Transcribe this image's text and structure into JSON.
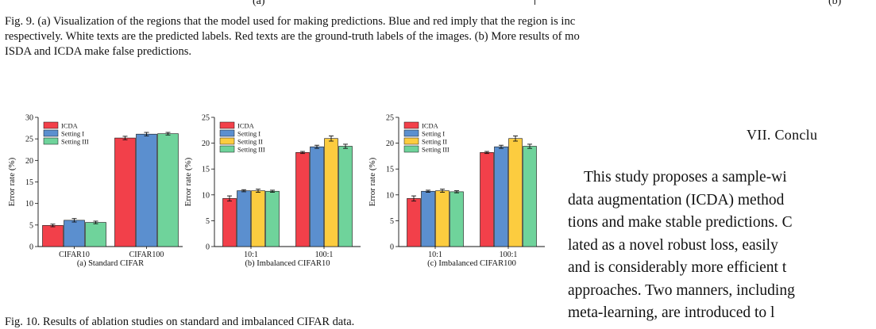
{
  "fig9": {
    "sub_a": "(a)",
    "sub_b": "(b)",
    "caption_lines": [
      "Fig. 9.  (a) Visualization of the regions that the model used for making predictions. Blue and red imply that the region is inc",
      "respectively. White texts are the predicted labels. Red texts are the ground-truth labels of the images. (b) More results of mo",
      "ISDA and ICDA make false predictions."
    ]
  },
  "fig10": {
    "caption": "Fig. 10.  Results of ablation studies on standard and imbalanced CIFAR data."
  },
  "section_heading": "VII. Conclu",
  "body_lines": [
    "This study proposes a sample-wi",
    "data augmentation (ICDA) method",
    "tions and make stable predictions. C",
    "lated as a novel robust loss, easily",
    "and is considerably more efficient t",
    "approaches. Two manners, including",
    "meta-learning, are introduced to l"
  ],
  "colors": {
    "ICDA": "#f2404a",
    "Setting I": "#5b8fcf",
    "Setting II": "#fccc3f",
    "Setting III": "#6fd39b"
  },
  "chart_data": [
    {
      "type": "bar",
      "subtitle": "(a) Standard CIFAR",
      "ylabel": "Error rate (%)",
      "ylim": [
        0,
        30
      ],
      "yticks": [
        0,
        5,
        10,
        15,
        20,
        25,
        30
      ],
      "categories": [
        "CIFAR10",
        "CIFAR100"
      ],
      "legend": "top-left",
      "series": [
        {
          "name": "ICDA",
          "values": [
            4.9,
            25.2
          ],
          "errors": [
            0.3,
            0.4
          ]
        },
        {
          "name": "Setting I",
          "values": [
            6.1,
            26.1
          ],
          "errors": [
            0.4,
            0.4
          ]
        },
        {
          "name": "Setting III",
          "values": [
            5.6,
            26.2
          ],
          "errors": [
            0.3,
            0.3
          ]
        }
      ]
    },
    {
      "type": "bar",
      "subtitle": "(b) Imbalanced CIFAR10",
      "ylabel": "Error rate (%)",
      "ylim": [
        0,
        25
      ],
      "yticks": [
        0,
        5,
        10,
        15,
        20,
        25
      ],
      "categories": [
        "10:1",
        "100:1"
      ],
      "legend": "top-left",
      "series": [
        {
          "name": "ICDA",
          "values": [
            9.3,
            18.2
          ],
          "errors": [
            0.5,
            0.2
          ]
        },
        {
          "name": "Setting I",
          "values": [
            10.8,
            19.3
          ],
          "errors": [
            0.2,
            0.3
          ]
        },
        {
          "name": "Setting II",
          "values": [
            10.8,
            20.9
          ],
          "errors": [
            0.3,
            0.5
          ]
        },
        {
          "name": "Setting III",
          "values": [
            10.7,
            19.4
          ],
          "errors": [
            0.2,
            0.4
          ]
        }
      ]
    },
    {
      "type": "bar",
      "subtitle": "(c) Imbalanced CIFAR100",
      "ylabel": "Error rate (%)",
      "ylim": [
        0,
        25
      ],
      "yticks": [
        0,
        5,
        10,
        15,
        20,
        25
      ],
      "categories": [
        "10:1",
        "100:1"
      ],
      "legend": "top-left",
      "series": [
        {
          "name": "ICDA",
          "values": [
            9.3,
            18.2
          ],
          "errors": [
            0.5,
            0.2
          ]
        },
        {
          "name": "Setting I",
          "values": [
            10.7,
            19.3
          ],
          "errors": [
            0.2,
            0.3
          ]
        },
        {
          "name": "Setting II",
          "values": [
            10.8,
            20.9
          ],
          "errors": [
            0.3,
            0.5
          ]
        },
        {
          "name": "Setting III",
          "values": [
            10.6,
            19.4
          ],
          "errors": [
            0.2,
            0.4
          ]
        }
      ]
    }
  ]
}
